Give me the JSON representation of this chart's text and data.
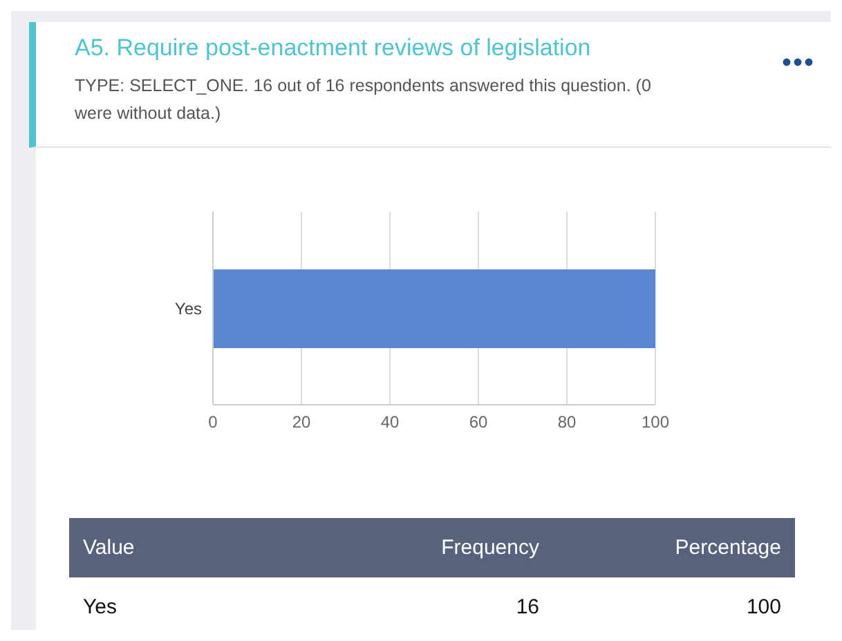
{
  "chart_data": {
    "type": "bar",
    "orientation": "horizontal",
    "title": "A5. Require post-enactment reviews of legislation",
    "subtitle": "TYPE: SELECT_ONE. 16 out of 16 respondents answered this question. (0 were without data.)",
    "categories": [
      "Yes"
    ],
    "values": [
      100
    ],
    "color": "#5b87d4",
    "xlim": [
      0,
      100
    ],
    "xticks": [
      0,
      20,
      40,
      60,
      80,
      100
    ],
    "grid": "x",
    "annotations": [
      "Value",
      "Frequency",
      "Percentage",
      "Yes",
      "16",
      "100"
    ]
  }
}
